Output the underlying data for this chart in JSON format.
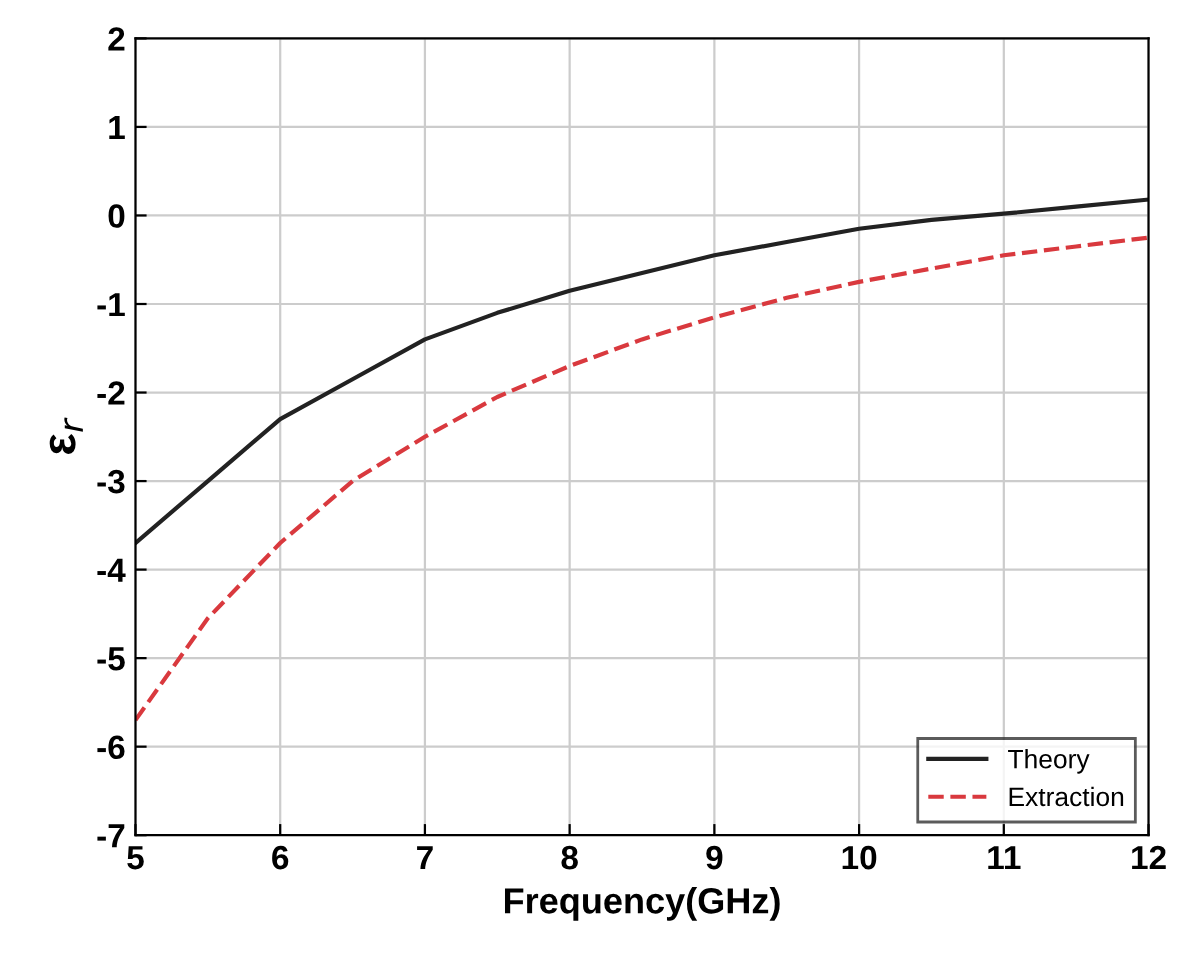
{
  "chart_data": {
    "type": "line",
    "xlabel": "Frequency(GHz)",
    "ylabel": "ε$_{r}$",
    "x": [
      5,
      5.5,
      6,
      6.5,
      7,
      7.5,
      8,
      8.5,
      9,
      9.5,
      10,
      10.5,
      11,
      11.5,
      12
    ],
    "series": [
      {
        "name": "Theory",
        "color": "#222222",
        "line_style": "solid",
        "values": [
          -3.7,
          -3.0,
          -2.3,
          -1.85,
          -1.4,
          -1.1,
          -0.85,
          -0.65,
          -0.45,
          -0.3,
          -0.15,
          -0.05,
          0.02,
          0.1,
          0.18
        ]
      },
      {
        "name": "Extraction",
        "color": "#d9393e",
        "line_style": "dashed",
        "values": [
          -5.7,
          -4.55,
          -3.7,
          -3.0,
          -2.5,
          -2.05,
          -1.7,
          -1.4,
          -1.15,
          -0.93,
          -0.75,
          -0.6,
          -0.45,
          -0.35,
          -0.25
        ]
      }
    ],
    "xlim": [
      5,
      12
    ],
    "ylim": [
      -7,
      2
    ],
    "xticks": [
      5,
      6,
      7,
      8,
      9,
      10,
      11,
      12
    ],
    "yticks": [
      -7,
      -6,
      -5,
      -4,
      -3,
      -2,
      -1,
      0,
      1,
      2
    ],
    "grid": true,
    "legend": "lower right"
  }
}
